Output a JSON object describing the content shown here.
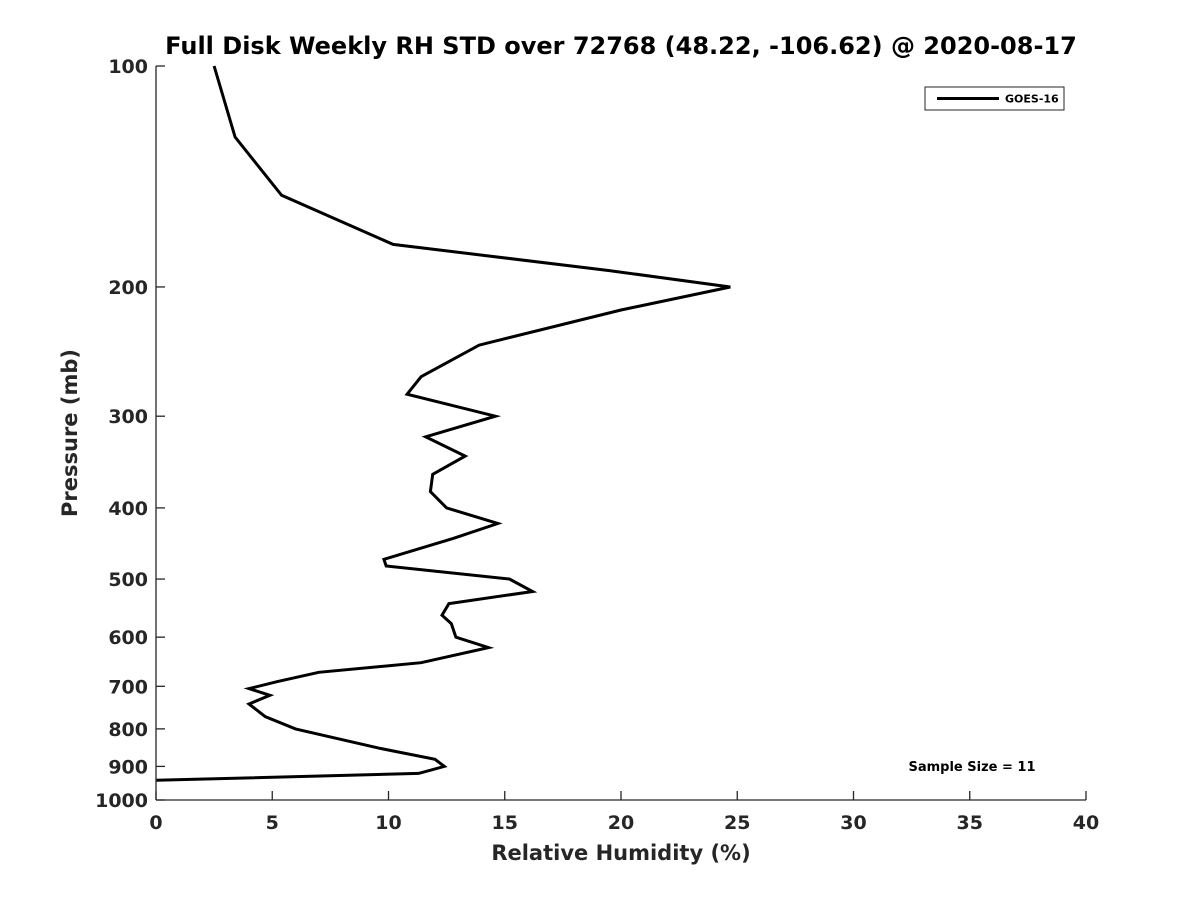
{
  "chart_data": {
    "type": "line",
    "title": "Full Disk Weekly RH STD over 72768 (48.22, -106.62) @ 2020-08-17",
    "xlabel": "Relative Humidity (%)",
    "ylabel": "Pressure (mb)",
    "xlim": [
      0,
      40
    ],
    "ylim": [
      100,
      1000
    ],
    "yscale": "log",
    "yreversed": true,
    "xticks": [
      0,
      5,
      10,
      15,
      20,
      25,
      30,
      35,
      40
    ],
    "yticks": [
      100,
      200,
      300,
      400,
      500,
      600,
      700,
      800,
      900,
      1000
    ],
    "grid": false,
    "legend_position": "top-right",
    "series": [
      {
        "name": "GOES-16",
        "color": "#000000",
        "points": [
          [
            2.5,
            100
          ],
          [
            3.4,
            125
          ],
          [
            5.4,
            150
          ],
          [
            10.2,
            175
          ],
          [
            19.5,
            190
          ],
          [
            24.7,
            200
          ],
          [
            20.0,
            215
          ],
          [
            13.9,
            240
          ],
          [
            11.4,
            265
          ],
          [
            10.8,
            280
          ],
          [
            14.6,
            300
          ],
          [
            11.6,
            320
          ],
          [
            13.3,
            340
          ],
          [
            11.9,
            360
          ],
          [
            11.8,
            380
          ],
          [
            12.5,
            400
          ],
          [
            14.7,
            420
          ],
          [
            12.8,
            440
          ],
          [
            9.8,
            470
          ],
          [
            9.9,
            480
          ],
          [
            15.2,
            500
          ],
          [
            16.2,
            520
          ],
          [
            12.6,
            540
          ],
          [
            12.3,
            560
          ],
          [
            12.7,
            575
          ],
          [
            12.9,
            600
          ],
          [
            14.3,
            620
          ],
          [
            11.4,
            650
          ],
          [
            7.0,
            670
          ],
          [
            5.2,
            690
          ],
          [
            4.0,
            705
          ],
          [
            4.9,
            720
          ],
          [
            4.0,
            740
          ],
          [
            4.7,
            770
          ],
          [
            6.0,
            800
          ],
          [
            9.6,
            850
          ],
          [
            12.0,
            880
          ],
          [
            12.4,
            900
          ],
          [
            11.3,
            920
          ],
          [
            0,
            940
          ]
        ]
      }
    ],
    "annotation": "Sample Size = 11"
  }
}
